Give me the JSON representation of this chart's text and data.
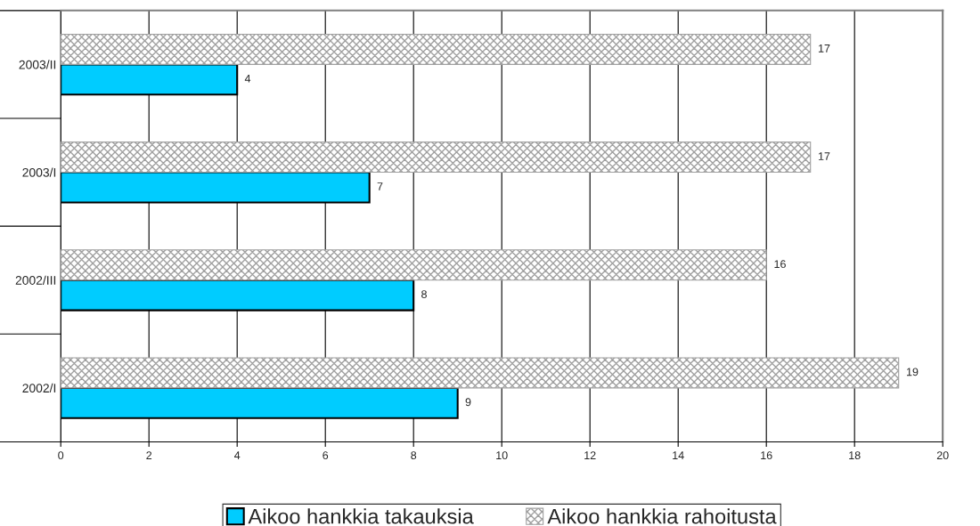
{
  "chart_data": {
    "type": "bar",
    "orientation": "horizontal",
    "categories": [
      "2003/II",
      "2003/I",
      "2002/III",
      "2002/I"
    ],
    "series": [
      {
        "name": "Aikoo hankkia takauksia",
        "color": "#00ccff",
        "values": [
          4,
          7,
          8,
          9
        ]
      },
      {
        "name": "Aikoo hankkia rahoitusta",
        "color": "#a0a0a0",
        "values": [
          17,
          17,
          16,
          19
        ]
      }
    ],
    "xlim": [
      0,
      20
    ],
    "xticks": [
      0,
      2,
      4,
      6,
      8,
      10,
      12,
      14,
      16,
      18,
      20
    ],
    "grid": "x",
    "legend": "bottom",
    "data_labels": true
  }
}
